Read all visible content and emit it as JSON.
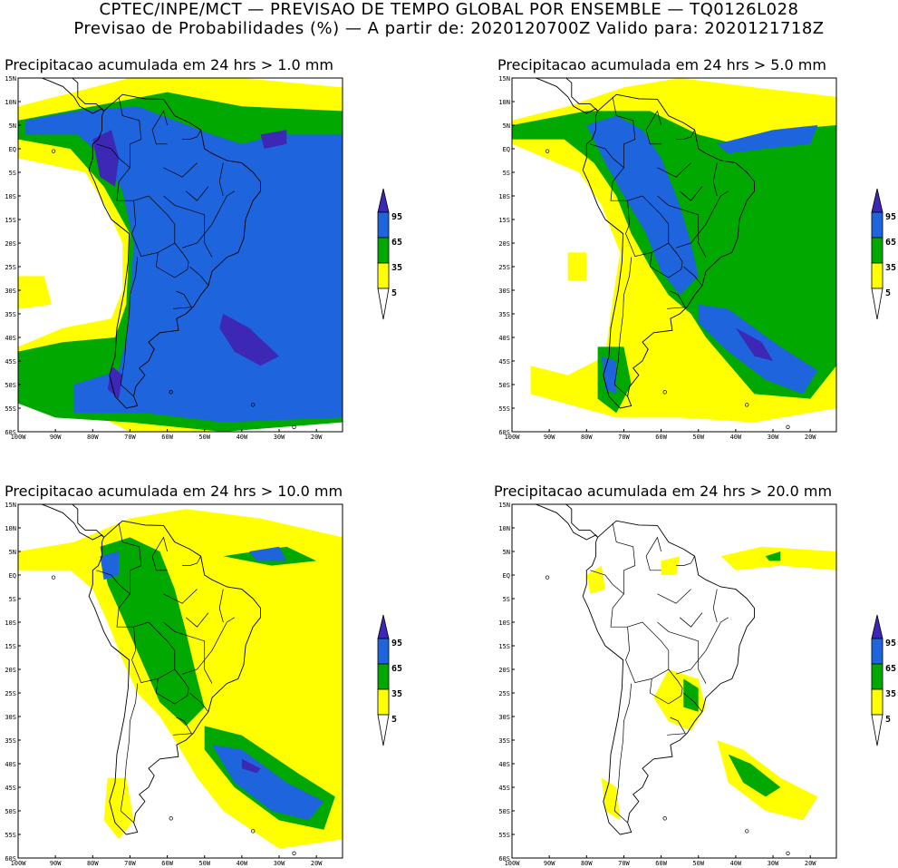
{
  "header": {
    "line1": "CPTEC/INPE/MCT — PREVISAO DE TEMPO GLOBAL POR ENSEMBLE — TQ0126L028",
    "line2": "Previsao de Probabilidades (%) —  A partir de: 2020120700Z  Valido para: 2020121718Z"
  },
  "panels": [
    {
      "title": "Precipitacao acumulada em 24 hrs > 1.0 mm"
    },
    {
      "title": "Precipitacao acumulada em 24 hrs > 5.0 mm"
    },
    {
      "title": "Precipitacao acumulada em 24 hrs > 10.0 mm"
    },
    {
      "title": "Precipitacao acumulada em 24 hrs > 20.0 mm"
    }
  ],
  "axes": {
    "lat_labels": [
      "15N",
      "10N",
      "5N",
      "EQ",
      "5S",
      "10S",
      "15S",
      "20S",
      "25S",
      "30S",
      "35S",
      "40S",
      "45S",
      "50S",
      "55S",
      "60S"
    ],
    "lon_labels": [
      "100W",
      "90W",
      "80W",
      "70W",
      "60W",
      "50W",
      "40W",
      "30W",
      "20W"
    ]
  },
  "colorbar": {
    "levels": [
      "95",
      "65",
      "35",
      "5"
    ],
    "colors": {
      "yellow": "#ffff00",
      "green": "#00a800",
      "blue": "#1e64dc",
      "darkblue": "#3c28b4"
    }
  }
}
